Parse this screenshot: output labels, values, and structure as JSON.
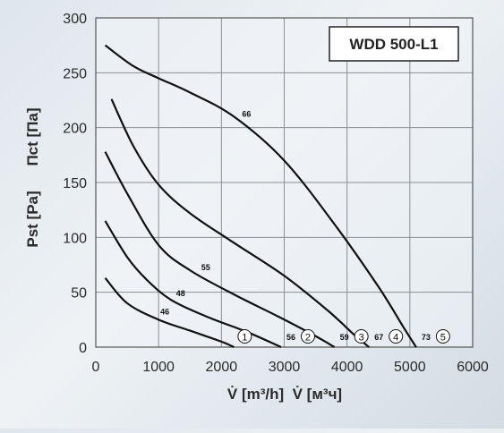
{
  "chart_data": {
    "type": "line",
    "title": "WDD 500-L1",
    "xlabel": "V̇ [m³/h]  V̇ [м³ч]",
    "ylabel_main": "Pst [Pa]",
    "ylabel_alt": "Пct [Па]",
    "xlim": [
      0,
      6000
    ],
    "ylim": [
      0,
      300
    ],
    "x_ticks": [
      "0",
      "1000",
      "2000",
      "3000",
      "4000",
      "5000",
      "6000"
    ],
    "y_ticks": [
      "0",
      "50",
      "100",
      "150",
      "200",
      "250",
      "300"
    ],
    "grid": true,
    "series": [
      {
        "name": "1",
        "curve_label": "46",
        "end_label": "",
        "points": [
          [
            150,
            63
          ],
          [
            500,
            40
          ],
          [
            1000,
            25
          ],
          [
            1500,
            15
          ],
          [
            2000,
            5
          ],
          [
            2200,
            0
          ]
        ]
      },
      {
        "name": "2",
        "curve_label": "48",
        "end_label": "56",
        "points": [
          [
            150,
            115
          ],
          [
            500,
            82
          ],
          [
            800,
            62
          ],
          [
            1200,
            43
          ],
          [
            1800,
            27
          ],
          [
            2400,
            14
          ],
          [
            2950,
            0
          ]
        ]
      },
      {
        "name": "3",
        "curve_label": "55",
        "end_label": "59",
        "points": [
          [
            150,
            178
          ],
          [
            500,
            140
          ],
          [
            1000,
            93
          ],
          [
            1500,
            70
          ],
          [
            2200,
            48
          ],
          [
            2900,
            28
          ],
          [
            3500,
            10
          ],
          [
            3800,
            0
          ]
        ]
      },
      {
        "name": "4",
        "curve_label": "",
        "end_label": "67",
        "points": [
          [
            250,
            226
          ],
          [
            600,
            183
          ],
          [
            1000,
            148
          ],
          [
            1500,
            122
          ],
          [
            2200,
            95
          ],
          [
            3000,
            65
          ],
          [
            3700,
            33
          ],
          [
            4100,
            12
          ],
          [
            4350,
            0
          ]
        ]
      },
      {
        "name": "5",
        "curve_label": "66",
        "end_label": "73",
        "points": [
          [
            150,
            275
          ],
          [
            600,
            256
          ],
          [
            1000,
            245
          ],
          [
            1500,
            232
          ],
          [
            2200,
            210
          ],
          [
            3000,
            170
          ],
          [
            3800,
            112
          ],
          [
            4500,
            55
          ],
          [
            4900,
            18
          ],
          [
            5100,
            0
          ]
        ]
      }
    ]
  }
}
